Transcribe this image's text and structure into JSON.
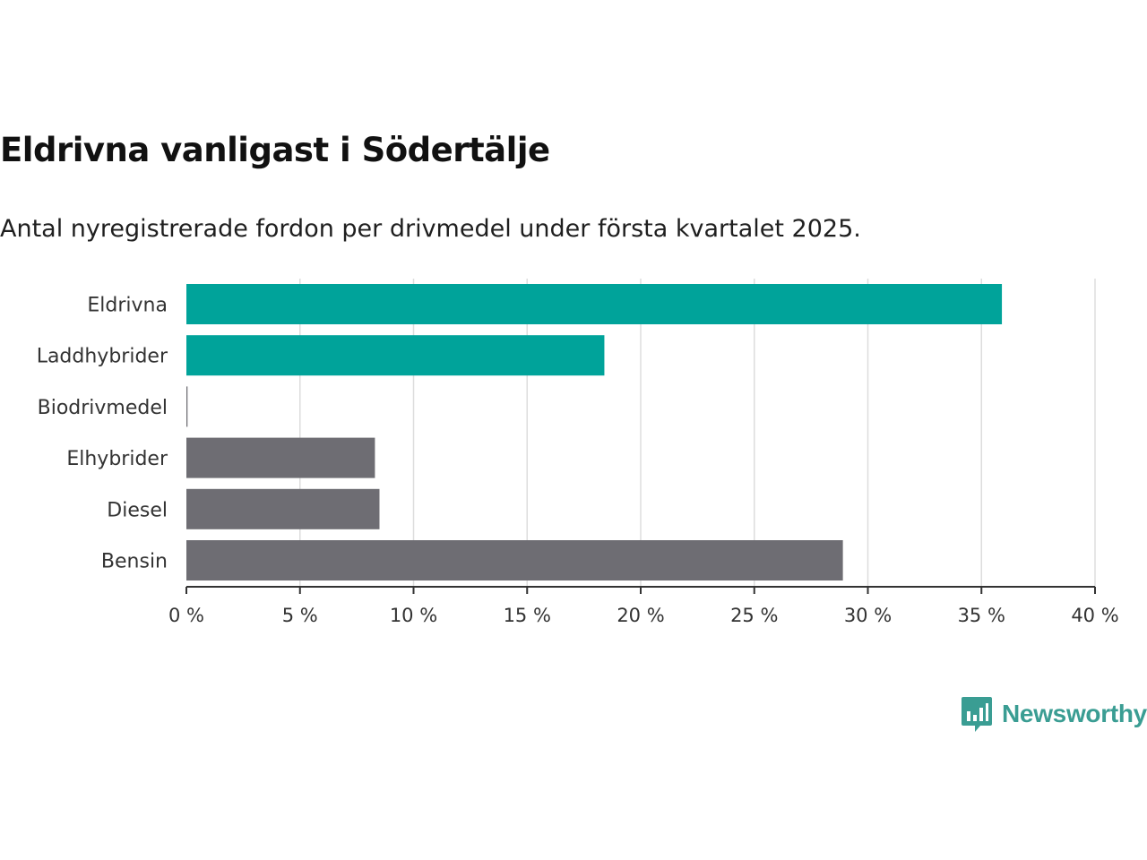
{
  "title": "Eldrivna vanligast i Södertälje",
  "subtitle": "Antal nyregistrerade fordon per drivmedel under första kvartalet 2025.",
  "brand": "Newsworthy",
  "colors": {
    "highlight": "#00a39a",
    "neutral": "#6e6d73",
    "grid": "#dddddd",
    "axis": "#333333",
    "logo": "#3a9d93"
  },
  "chart_data": {
    "type": "bar",
    "orientation": "horizontal",
    "categories": [
      "Eldrivna",
      "Laddhybrider",
      "Biodrivmedel",
      "Elhybrider",
      "Diesel",
      "Bensin"
    ],
    "values": [
      35.9,
      18.4,
      0.05,
      8.3,
      8.5,
      28.9
    ],
    "highlight": [
      true,
      true,
      false,
      false,
      false,
      false
    ],
    "xlim": [
      0,
      40
    ],
    "ticks": [
      0,
      5,
      10,
      15,
      20,
      25,
      30,
      35,
      40
    ],
    "tick_labels": [
      "0 %",
      "5 %",
      "10 %",
      "15 %",
      "20 %",
      "25 %",
      "30 %",
      "35 %",
      "40 %"
    ],
    "grid": true,
    "title": "Eldrivna vanligast i Södertälje",
    "xlabel": "",
    "ylabel": ""
  }
}
